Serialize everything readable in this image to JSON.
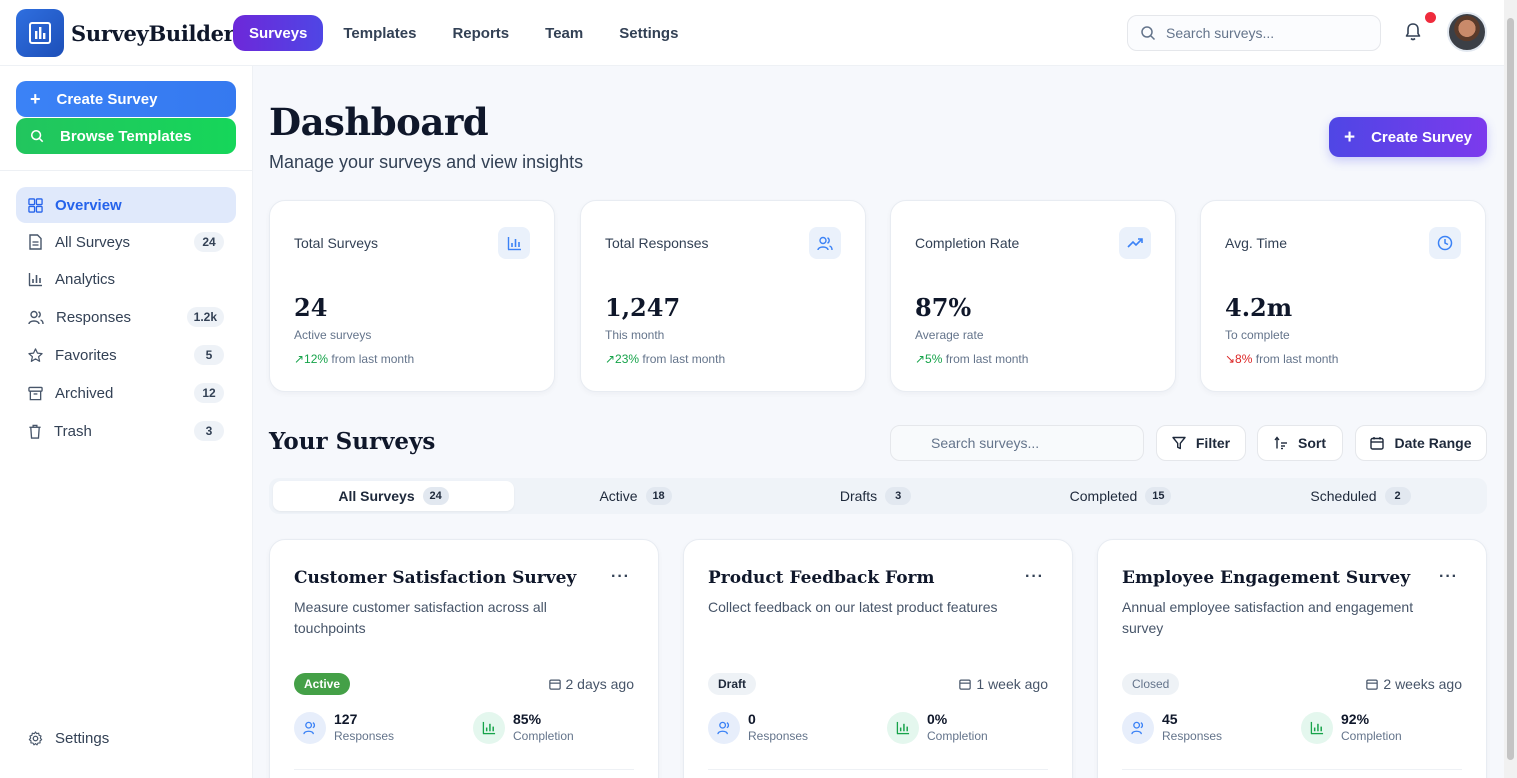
{
  "brand": {
    "name": "SurveyBuilder"
  },
  "nav": [
    {
      "label": "Surveys",
      "active": true
    },
    {
      "label": "Templates"
    },
    {
      "label": "Reports"
    },
    {
      "label": "Team"
    },
    {
      "label": "Settings"
    }
  ],
  "top_search": {
    "placeholder": "Search surveys..."
  },
  "sidebar": {
    "create_label": "Create Survey",
    "browse_label": "Browse Templates",
    "items": [
      {
        "label": "Overview",
        "icon": "grid-icon",
        "active": true
      },
      {
        "label": "All Surveys",
        "icon": "document-icon",
        "count": "24"
      },
      {
        "label": "Analytics",
        "icon": "bar-chart-icon"
      },
      {
        "label": "Responses",
        "icon": "users-icon",
        "count": "1.2k"
      },
      {
        "label": "Favorites",
        "icon": "star-icon",
        "count": "5"
      },
      {
        "label": "Archived",
        "icon": "archive-icon",
        "count": "12"
      },
      {
        "label": "Trash",
        "icon": "trash-icon",
        "count": "3"
      }
    ],
    "settings_label": "Settings"
  },
  "page": {
    "title": "Dashboard",
    "subtitle": "Manage your surveys and view insights",
    "create_label": "Create Survey"
  },
  "stats": [
    {
      "label": "Total Surveys",
      "value": "24",
      "sub": "Active surveys",
      "trend": "↗12%",
      "trend_dir": "up",
      "trend_text": "from last month",
      "icon": "bar-chart-icon"
    },
    {
      "label": "Total Responses",
      "value": "1,247",
      "sub": "This month",
      "trend": "↗23%",
      "trend_dir": "up",
      "trend_text": "from last month",
      "icon": "users-icon"
    },
    {
      "label": "Completion Rate",
      "value": "87%",
      "sub": "Average rate",
      "trend": "↗5%",
      "trend_dir": "up",
      "trend_text": "from last month",
      "icon": "trending-up-icon"
    },
    {
      "label": "Avg. Time",
      "value": "4.2m",
      "sub": "To complete",
      "trend": "↘8%",
      "trend_dir": "down",
      "trend_text": "from last month",
      "icon": "clock-icon"
    }
  ],
  "surveys_section": {
    "title": "Your Surveys",
    "search_placeholder": "Search surveys...",
    "filter_label": "Filter",
    "sort_label": "Sort",
    "date_range_label": "Date Range"
  },
  "tabs": [
    {
      "label": "All Surveys",
      "count": "24",
      "active": true
    },
    {
      "label": "Active",
      "count": "18"
    },
    {
      "label": "Drafts",
      "count": "3"
    },
    {
      "label": "Completed",
      "count": "15"
    },
    {
      "label": "Scheduled",
      "count": "2"
    }
  ],
  "cards": [
    {
      "title": "Customer Satisfaction Survey",
      "desc": "Measure customer satisfaction across all touchpoints",
      "status": "Active",
      "date": "2 days ago",
      "responses": "127",
      "responses_label": "Responses",
      "completion": "85%",
      "completion_label": "Completion"
    },
    {
      "title": "Product Feedback Form",
      "desc": "Collect feedback on our latest product features",
      "status": "Draft",
      "date": "1 week ago",
      "responses": "0",
      "responses_label": "Responses",
      "completion": "0%",
      "completion_label": "Completion"
    },
    {
      "title": "Employee Engagement Survey",
      "desc": "Annual employee satisfaction and engagement survey",
      "status": "Closed",
      "date": "2 weeks ago",
      "responses": "45",
      "responses_label": "Responses",
      "completion": "92%",
      "completion_label": "Completion"
    }
  ],
  "colors": {
    "primary": "#4f46e5",
    "accent_blue": "#3b82f6",
    "accent_green": "#22c55e",
    "danger": "#ef2b3c"
  }
}
